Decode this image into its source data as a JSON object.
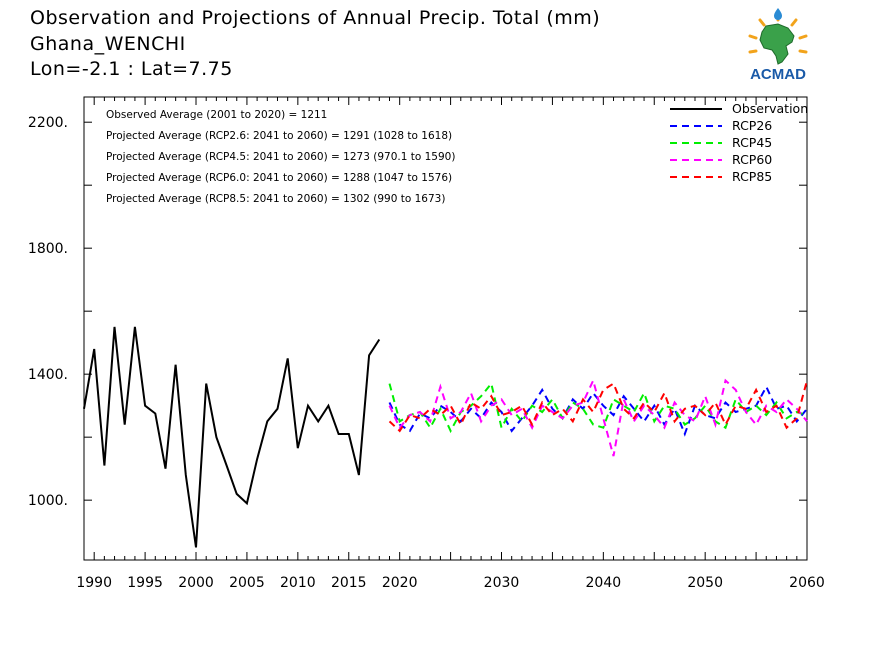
{
  "header": {
    "title_line1": "Observation and Projections of Annual Precip. Total (mm)",
    "title_line2": "Ghana_WENCHI",
    "title_line3": "Lon=-2.1 : Lat=7.75"
  },
  "logo": {
    "text": "ACMAD",
    "icon": "africa-map-logo"
  },
  "colors": {
    "observation": "#000000",
    "rcp26": "#0000ff",
    "rcp45": "#00ee00",
    "rcp60": "#ff00ff",
    "rcp85": "#ff0000"
  },
  "chart_data": {
    "type": "line",
    "title": "Observation and Projections of Annual Precip. Total (mm)",
    "xlim": [
      1989,
      2060
    ],
    "ylim": [
      810,
      2280
    ],
    "y_ticks": [
      1000,
      1400,
      1800,
      2200
    ],
    "y_tick_labels": [
      "1000.",
      "1400.",
      "1800.",
      "2200."
    ],
    "x_ticks": [
      1990,
      1995,
      2000,
      2005,
      2010,
      2015,
      2020,
      2030,
      2040,
      2050,
      2060
    ],
    "x_tick_labels": [
      "1990",
      "1995",
      "2000",
      "2005",
      "2010",
      "2015",
      "2020",
      "2030",
      "2040",
      "2050",
      "2060"
    ],
    "legend_position": "top-right",
    "annotations": [
      "Observed Average (2001 to 2020) = 1211",
      "Projected Average (RCP2.6: 2041 to 2060) = 1291 (1028 to 1618)",
      "Projected Average (RCP4.5: 2041 to 2060) = 1273 (970.1 to 1590)",
      "Projected Average (RCP6.0: 2041 to 2060) = 1288 (1047 to 1576)",
      "Projected Average (RCP8.5: 2041 to 2060) = 1302 (990 to 1673)"
    ],
    "series": [
      {
        "name": "Observation",
        "color": "#000000",
        "dashed": false,
        "x": [
          1989,
          1990,
          1991,
          1992,
          1993,
          1994,
          1995,
          1996,
          1997,
          1998,
          1999,
          2000,
          2001,
          2002,
          2003,
          2004,
          2005,
          2006,
          2007,
          2008,
          2009,
          2010,
          2011,
          2012,
          2013,
          2014,
          2015,
          2016,
          2017,
          2018,
          2019,
          2020
        ],
        "values": [
          1290,
          1480,
          1110,
          1550,
          1240,
          1550,
          1300,
          1275,
          1100,
          1430,
          1080,
          850,
          1370,
          1200,
          1110,
          1020,
          990,
          1130,
          1250,
          1290,
          1450,
          1165,
          1300,
          1250,
          1300,
          1210,
          1210,
          1080,
          1460,
          1510,
          null,
          null
        ]
      },
      {
        "name": "RCP26",
        "color": "#0000ff",
        "dashed": true,
        "x": [
          2019,
          2020,
          2021,
          2022,
          2023,
          2024,
          2025,
          2026,
          2027,
          2028,
          2029,
          2030,
          2031,
          2032,
          2033,
          2034,
          2035,
          2036,
          2037,
          2038,
          2039,
          2040,
          2041,
          2042,
          2043,
          2044,
          2045,
          2046,
          2047,
          2048,
          2049,
          2050,
          2051,
          2052,
          2053,
          2054,
          2055,
          2056,
          2057,
          2058,
          2059,
          2060
        ],
        "values": [
          1310,
          1240,
          1220,
          1275,
          1260,
          1300,
          1280,
          1250,
          1290,
          1260,
          1310,
          1280,
          1220,
          1260,
          1300,
          1350,
          1290,
          1260,
          1320,
          1290,
          1340,
          1300,
          1270,
          1330,
          1290,
          1250,
          1300,
          1240,
          1290,
          1210,
          1300,
          1270,
          1260,
          1310,
          1280,
          1290,
          1300,
          1360,
          1290,
          1300,
          1250,
          1290
        ]
      },
      {
        "name": "RCP45",
        "color": "#00ee00",
        "dashed": true,
        "x": [
          2019,
          2020,
          2021,
          2022,
          2023,
          2024,
          2025,
          2026,
          2027,
          2028,
          2029,
          2030,
          2031,
          2032,
          2033,
          2034,
          2035,
          2036,
          2037,
          2038,
          2039,
          2040,
          2041,
          2042,
          2043,
          2044,
          2045,
          2046,
          2047,
          2048,
          2049,
          2050,
          2051,
          2052,
          2053,
          2054,
          2055,
          2056,
          2057,
          2058,
          2059,
          2060
        ],
        "values": [
          1370,
          1250,
          1270,
          1280,
          1230,
          1290,
          1220,
          1280,
          1300,
          1330,
          1370,
          1230,
          1290,
          1250,
          1300,
          1280,
          1320,
          1260,
          1310,
          1290,
          1240,
          1230,
          1320,
          1300,
          1280,
          1340,
          1250,
          1300,
          1290,
          1240,
          1260,
          1300,
          1250,
          1230,
          1320,
          1280,
          1300,
          1270,
          1310,
          1260,
          1280,
          1270
        ]
      },
      {
        "name": "RCP60",
        "color": "#ff00ff",
        "dashed": true,
        "x": [
          2019,
          2020,
          2021,
          2022,
          2023,
          2024,
          2025,
          2026,
          2027,
          2028,
          2029,
          2030,
          2031,
          2032,
          2033,
          2034,
          2035,
          2036,
          2037,
          2038,
          2039,
          2040,
          2041,
          2042,
          2043,
          2044,
          2045,
          2046,
          2047,
          2048,
          2049,
          2050,
          2051,
          2052,
          2053,
          2054,
          2055,
          2056,
          2057,
          2058,
          2059,
          2060
        ],
        "values": [
          1300,
          1230,
          1270,
          1280,
          1250,
          1360,
          1260,
          1280,
          1340,
          1250,
          1300,
          1320,
          1270,
          1290,
          1230,
          1300,
          1280,
          1260,
          1300,
          1310,
          1380,
          1260,
          1140,
          1320,
          1250,
          1300,
          1270,
          1230,
          1310,
          1270,
          1250,
          1330,
          1240,
          1380,
          1350,
          1280,
          1240,
          1300,
          1280,
          1320,
          1290,
          1250
        ]
      },
      {
        "name": "RCP85",
        "color": "#ff0000",
        "dashed": true,
        "x": [
          2019,
          2020,
          2021,
          2022,
          2023,
          2024,
          2025,
          2026,
          2027,
          2028,
          2029,
          2030,
          2031,
          2032,
          2033,
          2034,
          2035,
          2036,
          2037,
          2038,
          2039,
          2040,
          2041,
          2042,
          2043,
          2044,
          2045,
          2046,
          2047,
          2048,
          2049,
          2050,
          2051,
          2052,
          2053,
          2054,
          2055,
          2056,
          2057,
          2058,
          2059,
          2060
        ],
        "values": [
          1250,
          1220,
          1270,
          1260,
          1290,
          1270,
          1300,
          1240,
          1310,
          1290,
          1330,
          1270,
          1280,
          1300,
          1240,
          1310,
          1270,
          1290,
          1250,
          1320,
          1280,
          1350,
          1370,
          1290,
          1260,
          1310,
          1280,
          1340,
          1250,
          1290,
          1300,
          1270,
          1310,
          1240,
          1300,
          1290,
          1350,
          1280,
          1300,
          1230,
          1260,
          1380
        ]
      }
    ]
  }
}
